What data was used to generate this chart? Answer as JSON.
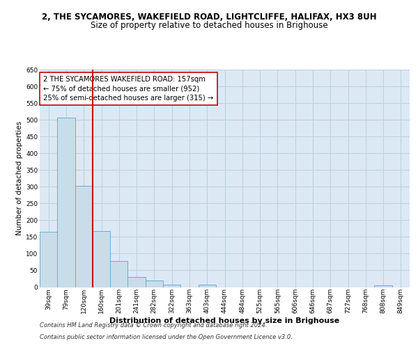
{
  "title1": "2, THE SYCAMORES, WAKEFIELD ROAD, LIGHTCLIFFE, HALIFAX, HX3 8UH",
  "title2": "Size of property relative to detached houses in Brighouse",
  "xlabel": "Distribution of detached houses by size in Brighouse",
  "ylabel": "Number of detached properties",
  "bar_labels": [
    "39sqm",
    "79sqm",
    "120sqm",
    "160sqm",
    "201sqm",
    "241sqm",
    "282sqm",
    "322sqm",
    "363sqm",
    "403sqm",
    "444sqm",
    "484sqm",
    "525sqm",
    "565sqm",
    "606sqm",
    "646sqm",
    "687sqm",
    "727sqm",
    "768sqm",
    "808sqm",
    "849sqm"
  ],
  "bar_values": [
    165,
    507,
    302,
    168,
    78,
    31,
    20,
    7,
    0,
    8,
    0,
    0,
    0,
    0,
    0,
    0,
    0,
    0,
    0,
    6,
    0
  ],
  "bar_color": "#c9dcea",
  "bar_edge_color": "#6aadd5",
  "vline_x": 2.5,
  "vline_color": "#cc0000",
  "annotation_text": "2 THE SYCAMORES WAKEFIELD ROAD: 157sqm\n← 75% of detached houses are smaller (952)\n25% of semi-detached houses are larger (315) →",
  "annotation_box_color": "#ffffff",
  "annotation_box_edge": "#cc0000",
  "ylim": [
    0,
    650
  ],
  "yticks": [
    0,
    50,
    100,
    150,
    200,
    250,
    300,
    350,
    400,
    450,
    500,
    550,
    600,
    650
  ],
  "grid_color": "#c0d0e0",
  "bg_color": "#dce9f5",
  "footer1": "Contains HM Land Registry data © Crown copyright and database right 2024.",
  "footer2": "Contains public sector information licensed under the Open Government Licence v3.0.",
  "title1_fontsize": 8.5,
  "title2_fontsize": 8.5,
  "annotation_fontsize": 7.2,
  "ylabel_fontsize": 7.5,
  "xlabel_fontsize": 8,
  "tick_fontsize": 6.5,
  "footer_fontsize": 6
}
